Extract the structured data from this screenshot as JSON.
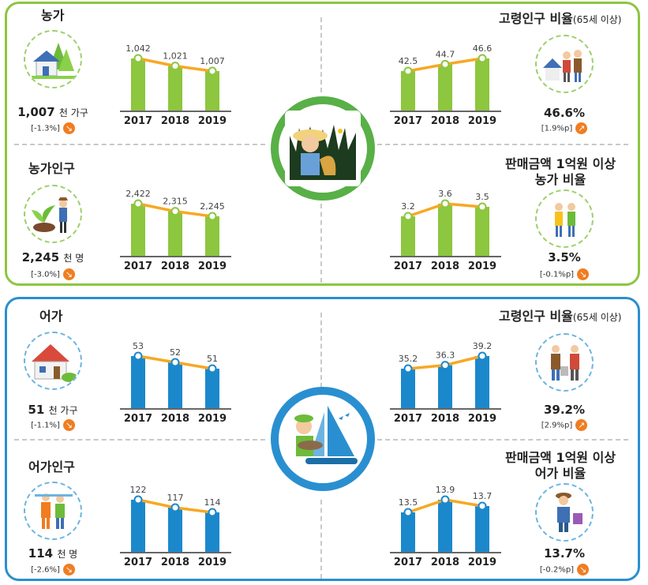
{
  "colors": {
    "farm": "#8dc63f",
    "fish": "#1b88cc",
    "trend": "#f7a823",
    "down": "#f07d20"
  },
  "farm": {
    "households": {
      "title": "농가",
      "value": "1,007",
      "unit": "천 가구",
      "change": "[-1.3%]",
      "change_icon": "arrow-down-icon",
      "icon": "house-tree-icon"
    },
    "population": {
      "title": "농가인구",
      "value": "2,245",
      "unit": "천 명",
      "change": "[-3.0%]",
      "change_icon": "arrow-down-icon",
      "icon": "farmer-planting-icon"
    },
    "elderly": {
      "title": "고령인구 비율",
      "title_sub": "(65세 이상)",
      "value": "46.6%",
      "change": "[1.9%p]",
      "change_icon": "arrow-up-icon",
      "icon": "elderly-farmers-icon"
    },
    "sales": {
      "title_line1": "판매금액 1억원 이상",
      "title_line2": "농가 비율",
      "value": "3.5%",
      "change": "[-0.1%p]",
      "change_icon": "arrow-down-icon",
      "icon": "farmer-couple-icon"
    },
    "center_icon": "farmer-rice-icon"
  },
  "fish": {
    "households": {
      "title": "어가",
      "value": "51",
      "unit": "천 가구",
      "change": "[-1.1%]",
      "change_icon": "arrow-down-icon",
      "icon": "house-icon"
    },
    "population": {
      "title": "어가인구",
      "value": "114",
      "unit": "천 명",
      "change": "[-2.6%]",
      "change_icon": "arrow-down-icon",
      "icon": "fisher-couple-icon"
    },
    "elderly": {
      "title": "고령인구 비율",
      "title_sub": "(65세 이상)",
      "value": "39.2%",
      "change": "[2.9%p]",
      "change_icon": "arrow-up-icon",
      "icon": "elderly-fishers-icon"
    },
    "sales": {
      "title_line1": "판매금액 1억원 이상",
      "title_line2": "어가 비율",
      "value": "13.7%",
      "change": "[-0.2%p]",
      "change_icon": "arrow-down-icon",
      "icon": "fisher-icon"
    },
    "center_icon": "fisher-sailboat-icon"
  },
  "chart_data": [
    {
      "id": "farm_households",
      "type": "bar",
      "color": "#8dc63f",
      "categories": [
        "2017",
        "2018",
        "2019"
      ],
      "values": [
        1042,
        1021,
        1007
      ],
      "labels": [
        "1,042",
        "1,021",
        "1,007"
      ]
    },
    {
      "id": "farm_elderly",
      "type": "bar",
      "color": "#8dc63f",
      "categories": [
        "2017",
        "2018",
        "2019"
      ],
      "values": [
        42.5,
        44.7,
        46.6
      ],
      "labels": [
        "42.5",
        "44.7",
        "46.6"
      ]
    },
    {
      "id": "farm_population",
      "type": "bar",
      "color": "#8dc63f",
      "categories": [
        "2017",
        "2018",
        "2019"
      ],
      "values": [
        2422,
        2315,
        2245
      ],
      "labels": [
        "2,422",
        "2,315",
        "2,245"
      ]
    },
    {
      "id": "farm_sales",
      "type": "bar",
      "color": "#8dc63f",
      "categories": [
        "2017",
        "2018",
        "2019"
      ],
      "values": [
        3.2,
        3.6,
        3.5
      ],
      "labels": [
        "3.2",
        "3.6",
        "3.5"
      ]
    },
    {
      "id": "fish_households",
      "type": "bar",
      "color": "#1b88cc",
      "categories": [
        "2017",
        "2018",
        "2019"
      ],
      "values": [
        53,
        52,
        51
      ],
      "labels": [
        "53",
        "52",
        "51"
      ]
    },
    {
      "id": "fish_elderly",
      "type": "bar",
      "color": "#1b88cc",
      "categories": [
        "2017",
        "2018",
        "2019"
      ],
      "values": [
        35.2,
        36.3,
        39.2
      ],
      "labels": [
        "35.2",
        "36.3",
        "39.2"
      ]
    },
    {
      "id": "fish_population",
      "type": "bar",
      "color": "#1b88cc",
      "categories": [
        "2017",
        "2018",
        "2019"
      ],
      "values": [
        122,
        117,
        114
      ],
      "labels": [
        "122",
        "117",
        "114"
      ]
    },
    {
      "id": "fish_sales",
      "type": "bar",
      "color": "#1b88cc",
      "categories": [
        "2017",
        "2018",
        "2019"
      ],
      "values": [
        13.5,
        13.9,
        13.7
      ],
      "labels": [
        "13.5",
        "13.9",
        "13.7"
      ]
    }
  ]
}
